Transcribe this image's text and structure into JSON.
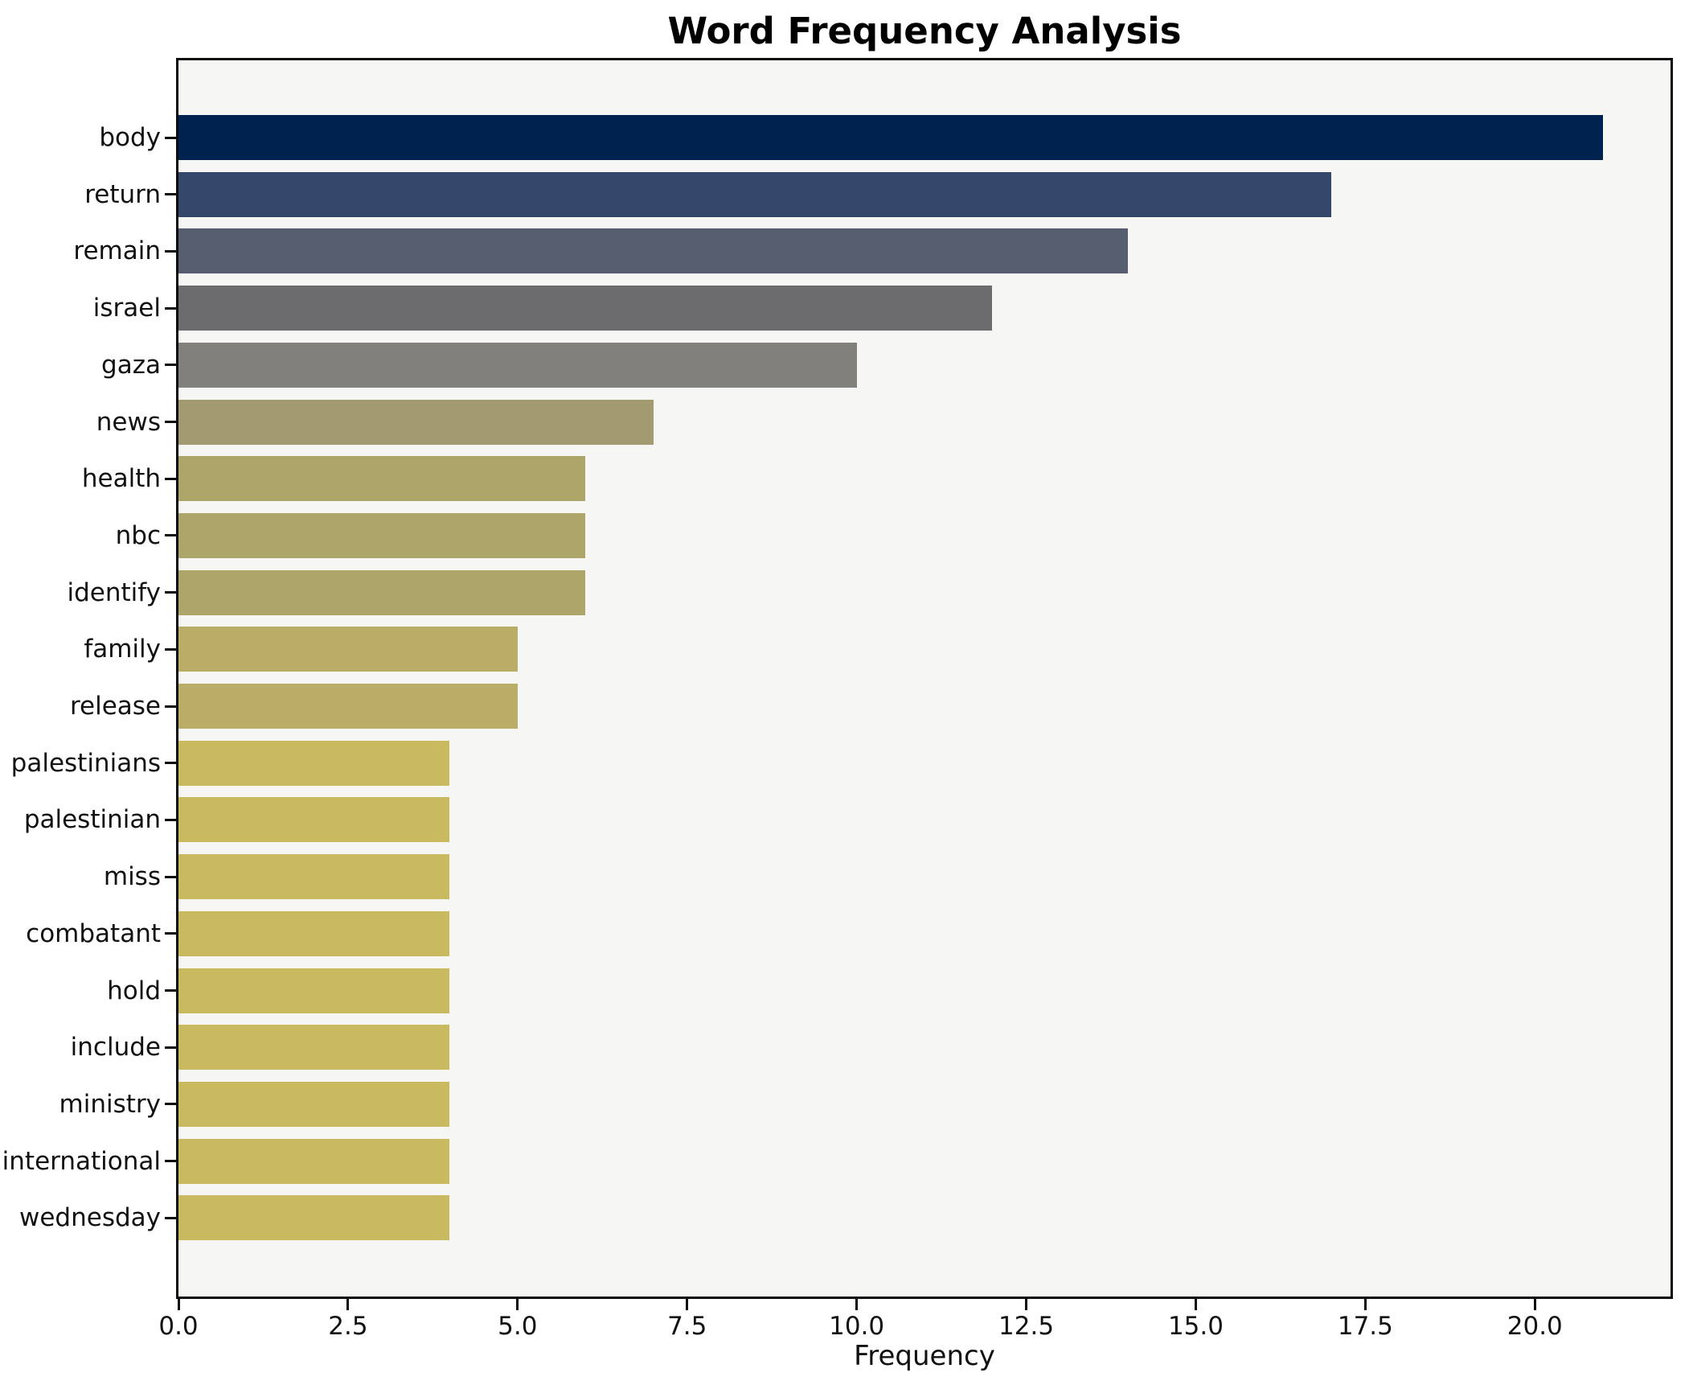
{
  "title": "Word Frequency Analysis",
  "chart_data": {
    "type": "bar",
    "orientation": "horizontal",
    "title": "Word Frequency Analysis",
    "xlabel": "Frequency",
    "ylabel": "",
    "categories": [
      "body",
      "return",
      "remain",
      "israel",
      "gaza",
      "news",
      "health",
      "nbc",
      "identify",
      "family",
      "release",
      "palestinians",
      "palestinian",
      "miss",
      "combatant",
      "hold",
      "include",
      "ministry",
      "international",
      "wednesday"
    ],
    "values": [
      21,
      17,
      14,
      12,
      10,
      7,
      6,
      6,
      6,
      5,
      5,
      4,
      4,
      4,
      4,
      4,
      4,
      4,
      4,
      4
    ],
    "bar_colors": [
      "#00224e",
      "#35466b",
      "#575e70",
      "#6c6c6e",
      "#81807a",
      "#a29b71",
      "#ada569",
      "#ada569",
      "#ada569",
      "#b9ad68",
      "#b9ad68",
      "#c9b95f",
      "#c9b95f",
      "#c9b95f",
      "#c9b95f",
      "#c9b95f",
      "#c9b95f",
      "#c9b95f",
      "#c9b95f",
      "#c9b95f"
    ],
    "xlim": [
      0,
      22
    ],
    "xticks": [
      0,
      2.5,
      5,
      7.5,
      10,
      12.5,
      15,
      17.5,
      20
    ],
    "xtick_labels": [
      "0.0",
      "2.5",
      "5.0",
      "7.5",
      "10.0",
      "12.5",
      "15.0",
      "17.5",
      "20.0"
    ],
    "grid": false,
    "legend": null,
    "colors": {
      "figure_background": "#ffffff",
      "plot_background": "#f6f6f4",
      "spine": "#0d0d0d",
      "text": "#111111"
    }
  }
}
